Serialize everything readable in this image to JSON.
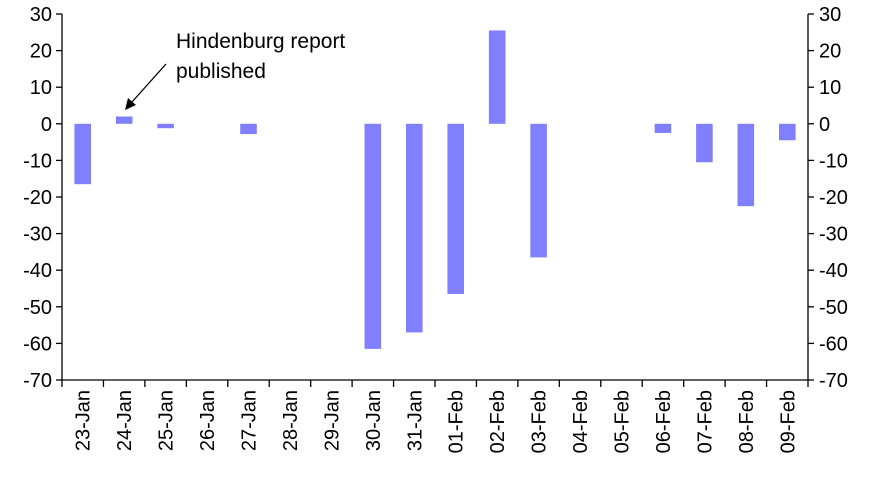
{
  "chart_data": {
    "type": "bar",
    "title": "",
    "xlabel": "",
    "ylabel": "",
    "categories": [
      "23-Jan",
      "24-Jan",
      "25-Jan",
      "26-Jan",
      "27-Jan",
      "28-Jan",
      "29-Jan",
      "30-Jan",
      "31-Jan",
      "01-Feb",
      "02-Feb",
      "03-Feb",
      "04-Feb",
      "05-Feb",
      "06-Feb",
      "07-Feb",
      "08-Feb",
      "09-Feb"
    ],
    "values": [
      -16.5,
      2,
      -1.2,
      0,
      -2.8,
      0,
      0,
      -61.5,
      -57,
      -46.5,
      25.5,
      -36.5,
      0,
      0,
      -2.5,
      -10.5,
      -22.5,
      -4.5
    ],
    "ylim": [
      -70,
      30
    ],
    "yticks": [
      30,
      20,
      10,
      0,
      -10,
      -20,
      -30,
      -40,
      -50,
      -60,
      -70
    ],
    "ytick_labels": [
      "30",
      "20",
      "10",
      "0",
      "-10",
      "-20",
      "-30",
      "-40",
      "-50",
      "-60",
      "-70"
    ],
    "secondary_axis": true,
    "grid": false,
    "bar_color": "#8080ff",
    "annotation": {
      "lines": [
        "Hindenburg report",
        "published"
      ],
      "target_category": "24-Jan"
    }
  }
}
